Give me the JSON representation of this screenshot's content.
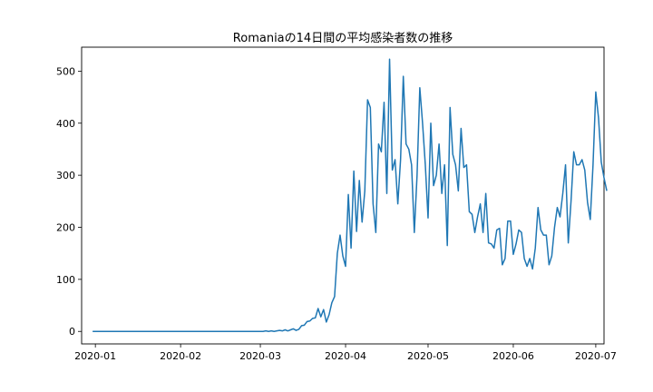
{
  "chart_data": {
    "type": "line",
    "title": "Romaniaの14日間の平均感染者数の推移",
    "xlabel": "",
    "ylabel": "",
    "xlim": [
      "2019-12-27",
      "2020-07-04"
    ],
    "ylim": [
      -24,
      546
    ],
    "x_ticks": [
      "2020-01",
      "2020-02",
      "2020-03",
      "2020-04",
      "2020-05",
      "2020-06",
      "2020-07"
    ],
    "y_ticks": [
      0,
      100,
      200,
      300,
      400,
      500
    ],
    "grid": false,
    "line_color": "#1f77b4",
    "series": [
      {
        "x_start": "2019-12-31",
        "values": [
          0,
          0,
          0,
          0,
          0,
          0,
          0,
          0,
          0,
          0,
          0,
          0,
          0,
          0,
          0,
          0,
          0,
          0,
          0,
          0,
          0,
          0,
          0,
          0,
          0,
          0,
          0,
          0,
          0,
          0,
          0,
          0,
          0,
          0,
          0,
          0,
          0,
          0,
          0,
          0,
          0,
          0,
          0,
          0,
          0,
          0,
          0,
          0,
          0,
          0,
          0,
          0,
          0,
          0,
          0,
          0,
          0,
          0,
          0,
          0,
          0,
          0,
          0,
          1,
          0,
          1,
          0,
          1,
          2,
          1,
          3,
          1,
          3,
          5,
          2,
          4,
          11,
          12,
          19,
          20,
          25,
          26,
          44,
          28,
          42,
          18,
          32,
          55,
          67,
          150,
          185,
          145,
          125,
          263,
          160,
          308,
          192,
          290,
          210,
          270,
          445,
          430,
          245,
          190,
          360,
          345,
          440,
          265,
          523,
          310,
          330,
          245,
          330,
          490,
          360,
          350,
          320,
          190,
          300,
          468,
          400,
          320,
          218,
          400,
          280,
          300,
          360,
          265,
          320,
          165,
          430,
          340,
          320,
          270,
          390,
          315,
          320,
          230,
          225,
          190,
          220,
          245,
          190,
          265,
          170,
          168,
          160,
          195,
          198,
          128,
          140,
          212,
          212,
          148,
          168,
          195,
          190,
          140,
          125,
          140,
          120,
          160,
          238,
          195,
          185,
          185,
          128,
          145,
          200,
          238,
          220,
          265,
          320,
          170,
          250,
          345,
          320,
          320,
          330,
          310,
          248,
          215,
          320,
          460,
          410,
          325,
          295,
          270
        ]
      }
    ]
  }
}
